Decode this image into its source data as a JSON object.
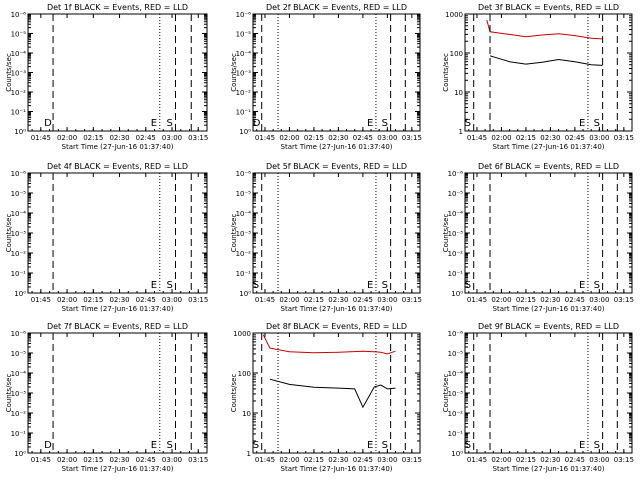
{
  "chart_data": [
    {
      "type": "line",
      "title": "Det 1f BLACK = Events, RED = LLD",
      "xlabel": "Start Time (27-Jun-16 01:37:40)",
      "ylabel": "Counts/sec",
      "x_tick_labels": [
        "01:45",
        "02:00",
        "02:15",
        "02:30",
        "02:45",
        "03:00",
        "03:15"
      ],
      "y_tick_labels": [
        "10⁰",
        "10⁻¹",
        "10⁻²",
        "10⁻³",
        "10⁻⁴",
        "10⁻⁵",
        "10⁻⁶"
      ],
      "yscale": "log",
      "xlim": [
        "01:37:40",
        "03:20:00"
      ],
      "markers": [
        {
          "time": "01:52",
          "style": "dashed",
          "label": "D"
        },
        {
          "time": "02:53",
          "style": "dotted",
          "label": "E"
        },
        {
          "time": "03:02",
          "style": "dashed",
          "label": "S"
        },
        {
          "time": "03:11",
          "style": "dashed",
          "label": ""
        }
      ],
      "series": []
    },
    {
      "type": "line",
      "title": "Det 2f BLACK = Events, RED = LLD",
      "xlabel": "Start Time (27-Jun-16 01:37:40)",
      "ylabel": "Counts/sec",
      "x_tick_labels": [
        "01:45",
        "02:00",
        "02:15",
        "02:30",
        "02:45",
        "03:00",
        "03:15"
      ],
      "y_tick_labels": [
        "10⁰",
        "10⁻¹",
        "10⁻²",
        "10⁻³",
        "10⁻⁴",
        "10⁻⁵",
        "10⁻⁶"
      ],
      "yscale": "log",
      "xlim": [
        "01:37:40",
        "03:20:00"
      ],
      "markers": [
        {
          "time": "01:43",
          "style": "dashed",
          "label": "D"
        },
        {
          "time": "01:53",
          "style": "dotted",
          "label": ""
        },
        {
          "time": "02:53",
          "style": "dotted",
          "label": "E"
        },
        {
          "time": "03:02",
          "style": "dashed",
          "label": "S"
        },
        {
          "time": "03:11",
          "style": "dashed",
          "label": ""
        }
      ],
      "series": []
    },
    {
      "type": "line",
      "title": "Det 3f BLACK = Events, RED = LLD",
      "xlabel": "Start Time (27-Jun-16 01:37:40)",
      "ylabel": "Counts/sec",
      "x_tick_labels": [
        "01:45",
        "02:00",
        "02:15",
        "02:30",
        "02:45",
        "03:00",
        "03:15"
      ],
      "y_tick_labels": [
        "1",
        "10",
        "100",
        "1000"
      ],
      "yscale": "log",
      "ylim": [
        1,
        1000
      ],
      "xlim": [
        "01:37:40",
        "03:20:00"
      ],
      "markers": [
        {
          "time": "01:43",
          "style": "dashed",
          "label": "S"
        },
        {
          "time": "01:53",
          "style": "dashed",
          "label": ""
        },
        {
          "time": "02:53",
          "style": "dotted",
          "label": "E"
        },
        {
          "time": "03:02",
          "style": "dashed",
          "label": "S"
        },
        {
          "time": "03:11",
          "style": "dashed",
          "label": ""
        }
      ],
      "series": [
        {
          "color": "#cc0000",
          "x": [
            "01:51",
            "01:53",
            "02:05",
            "02:15",
            "02:25",
            "02:35",
            "02:45",
            "02:55",
            "03:02"
          ],
          "y": [
            700,
            350,
            300,
            260,
            290,
            310,
            280,
            240,
            230
          ]
        },
        {
          "color": "#000000",
          "x": [
            "01:53",
            "02:05",
            "02:15",
            "02:25",
            "02:35",
            "02:45",
            "02:55",
            "03:02"
          ],
          "y": [
            85,
            60,
            52,
            58,
            68,
            60,
            50,
            48
          ]
        }
      ]
    },
    {
      "type": "line",
      "title": "Det 4f BLACK = Events, RED = LLD",
      "xlabel": "Start Time (27-Jun-16 01:37:40)",
      "ylabel": "Counts/sec",
      "x_tick_labels": [
        "01:45",
        "02:00",
        "02:15",
        "02:30",
        "02:45",
        "03:00",
        "03:15"
      ],
      "y_tick_labels": [
        "10⁰",
        "10⁻¹",
        "10⁻²",
        "10⁻³",
        "10⁻⁴",
        "10⁻⁵",
        "10⁻⁶"
      ],
      "yscale": "log",
      "xlim": [
        "01:37:40",
        "03:20:00"
      ],
      "markers": [
        {
          "time": "01:52",
          "style": "dashed",
          "label": ""
        },
        {
          "time": "02:53",
          "style": "dotted",
          "label": "E"
        },
        {
          "time": "03:02",
          "style": "dashed",
          "label": "S"
        },
        {
          "time": "03:11",
          "style": "dashed",
          "label": ""
        }
      ],
      "series": []
    },
    {
      "type": "line",
      "title": "Det 5f BLACK = Events, RED = LLD",
      "xlabel": "Start Time (27-Jun-16 01:37:40)",
      "ylabel": "Counts/sec",
      "x_tick_labels": [
        "01:45",
        "02:00",
        "02:15",
        "02:30",
        "02:45",
        "03:00",
        "03:15"
      ],
      "y_tick_labels": [
        "10⁰",
        "10⁻¹",
        "10⁻²",
        "10⁻³",
        "10⁻⁴",
        "10⁻⁵",
        "10⁻⁶"
      ],
      "yscale": "log",
      "xlim": [
        "01:37:40",
        "03:20:00"
      ],
      "markers": [
        {
          "time": "01:43",
          "style": "dashed",
          "label": "S"
        },
        {
          "time": "01:53",
          "style": "dotted",
          "label": ""
        },
        {
          "time": "02:53",
          "style": "dotted",
          "label": "E"
        },
        {
          "time": "03:02",
          "style": "dashed",
          "label": "S"
        },
        {
          "time": "03:11",
          "style": "dashed",
          "label": ""
        }
      ],
      "series": []
    },
    {
      "type": "line",
      "title": "Det 6f BLACK = Events, RED = LLD",
      "xlabel": "Start Time (27-Jun-16 01:37:40)",
      "ylabel": "Counts/sec",
      "x_tick_labels": [
        "01:45",
        "02:00",
        "02:15",
        "02:30",
        "02:45",
        "03:00",
        "03:15"
      ],
      "y_tick_labels": [
        "10⁰",
        "10⁻¹",
        "10⁻²",
        "10⁻³",
        "10⁻⁴",
        "10⁻⁵",
        "10⁻⁶"
      ],
      "yscale": "log",
      "xlim": [
        "01:37:40",
        "03:20:00"
      ],
      "markers": [
        {
          "time": "01:43",
          "style": "dashed",
          "label": "S"
        },
        {
          "time": "01:53",
          "style": "dashed",
          "label": ""
        },
        {
          "time": "02:53",
          "style": "dotted",
          "label": "E"
        },
        {
          "time": "03:02",
          "style": "dashed",
          "label": "S"
        },
        {
          "time": "03:11",
          "style": "dashed",
          "label": ""
        }
      ],
      "series": []
    },
    {
      "type": "line",
      "title": "Det 7f BLACK = Events, RED = LLD",
      "xlabel": "Start Time (27-Jun-16 01:37:40)",
      "ylabel": "Counts/sec",
      "x_tick_labels": [
        "01:45",
        "02:00",
        "02:15",
        "02:30",
        "02:45",
        "03:00",
        "03:15"
      ],
      "y_tick_labels": [
        "10⁰",
        "10⁻¹",
        "10⁻²",
        "10⁻³",
        "10⁻⁴",
        "10⁻⁵",
        "10⁻⁶"
      ],
      "yscale": "log",
      "xlim": [
        "01:37:40",
        "03:20:00"
      ],
      "markers": [
        {
          "time": "01:52",
          "style": "dashed",
          "label": "D"
        },
        {
          "time": "02:53",
          "style": "dotted",
          "label": "E"
        },
        {
          "time": "03:02",
          "style": "dashed",
          "label": "S"
        },
        {
          "time": "03:11",
          "style": "dashed",
          "label": ""
        }
      ],
      "series": []
    },
    {
      "type": "line",
      "title": "Det 8f BLACK = Events, RED = LLD",
      "xlabel": "Start Time (27-Jun-16 01:37:40)",
      "ylabel": "Counts/sec",
      "x_tick_labels": [
        "01:45",
        "02:00",
        "02:15",
        "02:30",
        "02:45",
        "03:00",
        "03:15"
      ],
      "y_tick_labels": [
        "1",
        "10",
        "100",
        "1000"
      ],
      "yscale": "log",
      "ylim": [
        1,
        1000
      ],
      "xlim": [
        "01:37:40",
        "03:20:00"
      ],
      "markers": [
        {
          "time": "01:43",
          "style": "dashed",
          "label": "S"
        },
        {
          "time": "01:53",
          "style": "dotted",
          "label": ""
        },
        {
          "time": "02:53",
          "style": "dotted",
          "label": "E"
        },
        {
          "time": "03:02",
          "style": "dashed",
          "label": "S"
        },
        {
          "time": "03:11",
          "style": "dashed",
          "label": ""
        }
      ],
      "series": [
        {
          "color": "#cc0000",
          "x": [
            "01:44",
            "01:48",
            "02:00",
            "02:15",
            "02:30",
            "02:45",
            "02:52",
            "02:56",
            "03:00",
            "03:05"
          ],
          "y": [
            900,
            420,
            340,
            320,
            330,
            350,
            340,
            330,
            300,
            350
          ]
        },
        {
          "color": "#000000",
          "x": [
            "01:48",
            "02:00",
            "02:15",
            "02:30",
            "02:40",
            "02:45",
            "02:52",
            "02:56",
            "03:00",
            "03:05"
          ],
          "y": [
            70,
            52,
            44,
            42,
            40,
            14,
            45,
            50,
            40,
            42
          ]
        }
      ]
    },
    {
      "type": "line",
      "title": "Det 9f BLACK = Events, RED = LLD",
      "xlabel": "Start Time (27-Jun-16 01:37:40)",
      "ylabel": "Counts/sec",
      "x_tick_labels": [
        "01:45",
        "02:00",
        "02:15",
        "02:30",
        "02:45",
        "03:00",
        "03:15"
      ],
      "y_tick_labels": [
        "10⁰",
        "10⁻¹",
        "10⁻²",
        "10⁻³",
        "10⁻⁴",
        "10⁻⁵",
        "10⁻⁶"
      ],
      "yscale": "log",
      "xlim": [
        "01:37:40",
        "03:20:00"
      ],
      "markers": [
        {
          "time": "01:43",
          "style": "dashed",
          "label": "S"
        },
        {
          "time": "01:53",
          "style": "dashed",
          "label": ""
        },
        {
          "time": "02:53",
          "style": "dotted",
          "label": "E"
        },
        {
          "time": "03:02",
          "style": "dashed",
          "label": "S"
        },
        {
          "time": "03:11",
          "style": "dashed",
          "label": ""
        }
      ],
      "series": []
    }
  ]
}
